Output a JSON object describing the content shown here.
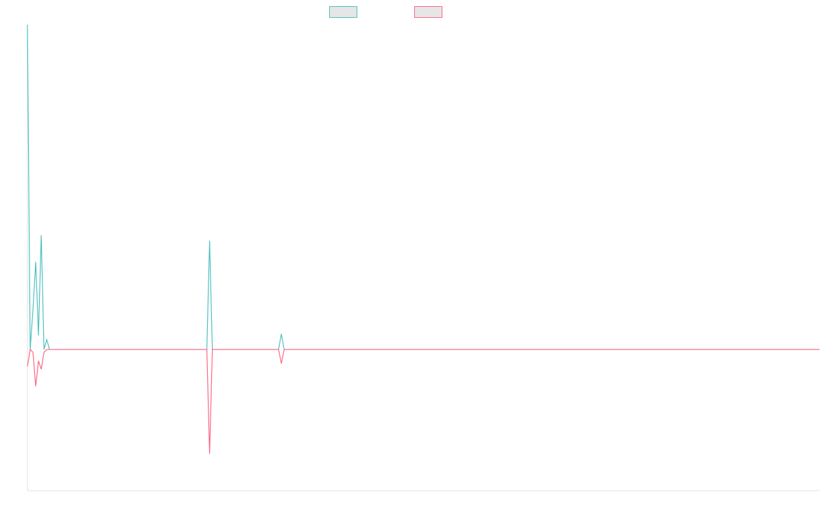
{
  "chart_data": {
    "type": "line",
    "title": "",
    "xlabel": "",
    "ylabel": "",
    "grid": false,
    "legend_position": "top-center",
    "x_count": 288,
    "ylim": [
      -1.0,
      2.3
    ],
    "series": [
      {
        "name": "",
        "color": "#4bc0c0",
        "fill": "#e6e6e6",
        "points": [
          [
            0,
            2.3
          ],
          [
            1,
            0.0
          ],
          [
            2,
            0.28
          ],
          [
            3,
            0.62
          ],
          [
            4,
            0.1
          ],
          [
            5,
            0.81
          ],
          [
            6,
            0.0
          ],
          [
            7,
            0.07
          ],
          [
            8,
            0.0
          ],
          [
            65,
            0.0
          ],
          [
            66,
            0.77
          ],
          [
            67,
            0.0
          ],
          [
            91,
            0.0
          ],
          [
            92,
            0.11
          ],
          [
            93,
            0.0
          ],
          [
            287,
            0.0
          ]
        ]
      },
      {
        "name": "",
        "color": "#ff6384",
        "fill": "#e6e6e6",
        "points": [
          [
            0,
            -0.12
          ],
          [
            1,
            0.0
          ],
          [
            2,
            -0.02
          ],
          [
            3,
            -0.26
          ],
          [
            4,
            -0.08
          ],
          [
            5,
            -0.14
          ],
          [
            6,
            -0.02
          ],
          [
            7,
            0.0
          ],
          [
            8,
            0.0
          ],
          [
            65,
            0.0
          ],
          [
            66,
            -0.74
          ],
          [
            67,
            0.0
          ],
          [
            91,
            0.0
          ],
          [
            92,
            -0.1
          ],
          [
            93,
            0.0
          ],
          [
            287,
            0.0
          ]
        ]
      }
    ]
  }
}
